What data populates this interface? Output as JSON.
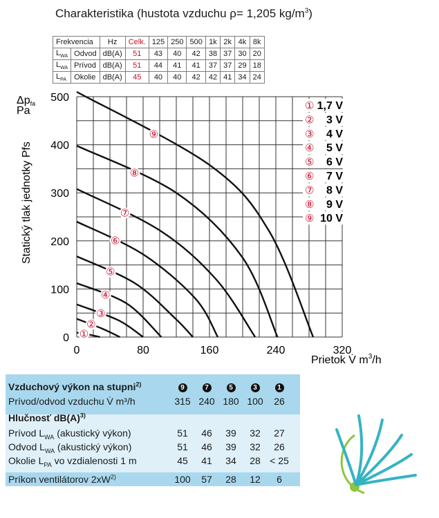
{
  "header": {
    "title_main": "Charakteristika (hustota vzduchu ρ= 1,205 kg/m",
    "title_sup": "3",
    "title_end": ")"
  },
  "octave_table": {
    "headers": [
      "Frekvencia",
      "Hz",
      "Celk.",
      "125",
      "250",
      "500",
      "1k",
      "2k",
      "4k",
      "8k"
    ],
    "rows": [
      {
        "sym_main": "L",
        "sym_sub": "WA",
        "label": "Odvod",
        "unit": "dB(A)",
        "total": "51",
        "values": [
          "43",
          "40",
          "42",
          "38",
          "37",
          "30",
          "20"
        ]
      },
      {
        "sym_main": "L",
        "sym_sub": "WA",
        "label": "Prívod",
        "unit": "dB(A)",
        "total": "51",
        "values": [
          "44",
          "41",
          "41",
          "37",
          "37",
          "29",
          "18"
        ]
      },
      {
        "sym_main": "L",
        "sym_sub": "PA",
        "label": "Okolie",
        "unit": "dB(A)",
        "total": "45",
        "values": [
          "40",
          "40",
          "42",
          "42",
          "41",
          "34",
          "24"
        ]
      }
    ]
  },
  "chart_data": {
    "type": "line",
    "ylabel_vertical": "Statický tlak jednotky Pfs",
    "yunit_main": "Δp",
    "yunit_sub": "fa",
    "yunit": "Pa",
    "xlabel_main": "Prietok V̇ m",
    "xlabel_sup": "3",
    "xlabel_end": "/h",
    "xlim": [
      0,
      320
    ],
    "ylim": [
      0,
      500
    ],
    "xticks": [
      0,
      80,
      160,
      240,
      320
    ],
    "yticks": [
      0,
      100,
      200,
      300,
      400,
      500
    ],
    "grid": true,
    "legend_position": "right",
    "series": [
      {
        "name": "1,7 V",
        "marker": "①",
        "points": [
          [
            0,
            9
          ],
          [
            15,
            5
          ],
          [
            28,
            0
          ]
        ]
      },
      {
        "name": "3 V",
        "marker": "②",
        "points": [
          [
            0,
            38
          ],
          [
            30,
            18
          ],
          [
            52,
            0
          ]
        ]
      },
      {
        "name": "4 V",
        "marker": "③",
        "points": [
          [
            0,
            68
          ],
          [
            50,
            35
          ],
          [
            80,
            0
          ]
        ]
      },
      {
        "name": "5 V",
        "marker": "④",
        "points": [
          [
            0,
            112
          ],
          [
            60,
            70
          ],
          [
            102,
            0
          ]
        ]
      },
      {
        "name": "6 V",
        "marker": "⑤",
        "points": [
          [
            0,
            168
          ],
          [
            70,
            112
          ],
          [
            118,
            40
          ],
          [
            140,
            0
          ]
        ]
      },
      {
        "name": "7 V",
        "marker": "⑥",
        "points": [
          [
            0,
            240
          ],
          [
            80,
            172
          ],
          [
            143,
            80
          ],
          [
            170,
            0
          ]
        ]
      },
      {
        "name": "8 V",
        "marker": "⑦",
        "points": [
          [
            0,
            308
          ],
          [
            100,
            222
          ],
          [
            168,
            120
          ],
          [
            215,
            0
          ]
        ]
      },
      {
        "name": "9 V",
        "marker": "⑧",
        "points": [
          [
            0,
            398
          ],
          [
            120,
            300
          ],
          [
            200,
            165
          ],
          [
            242,
            0
          ]
        ]
      },
      {
        "name": "10 V",
        "marker": "⑨",
        "points": [
          [
            0,
            510
          ],
          [
            160,
            358
          ],
          [
            232,
            220
          ],
          [
            285,
            0
          ]
        ]
      }
    ]
  },
  "performance": {
    "title": "Vzduchový výkon na stupni",
    "title_sup": "2)",
    "steps": [
      "9",
      "7",
      "5",
      "3",
      "1"
    ],
    "airflow_label": "Prívod/odvod vzduchu V̇ m³/h",
    "airflow": [
      "315",
      "240",
      "180",
      "100",
      "26"
    ],
    "noise_title": "Hlučnosť dB(A)",
    "noise_sup": "3)",
    "supply_pre": "Prívod L",
    "supply_sub": "WA",
    "supply_post": " (akustický výkon)",
    "supply": [
      "51",
      "46",
      "39",
      "32",
      "27"
    ],
    "extract_pre": "Odvod L",
    "extract_sub": "WA",
    "extract_post": " (akustický výkon)",
    "extract": [
      "51",
      "46",
      "39",
      "32",
      "26"
    ],
    "ambient_pre": "Okolie L",
    "ambient_sub": "PA",
    "ambient_post": " vo vzdialenosti 1 m",
    "ambient": [
      "45",
      "41",
      "34",
      "28",
      "< 25"
    ],
    "power_label": "Príkon ventilátorov 2xW",
    "power_sup": "2)",
    "power": [
      "100",
      "57",
      "28",
      "12",
      "6"
    ]
  },
  "colors": {
    "band_dark": "#a9d8ee",
    "band_light": "#dff0f8",
    "marker_red": "#c8102e",
    "logo_teal": "#35b3c3",
    "logo_green": "#8dc63f"
  }
}
